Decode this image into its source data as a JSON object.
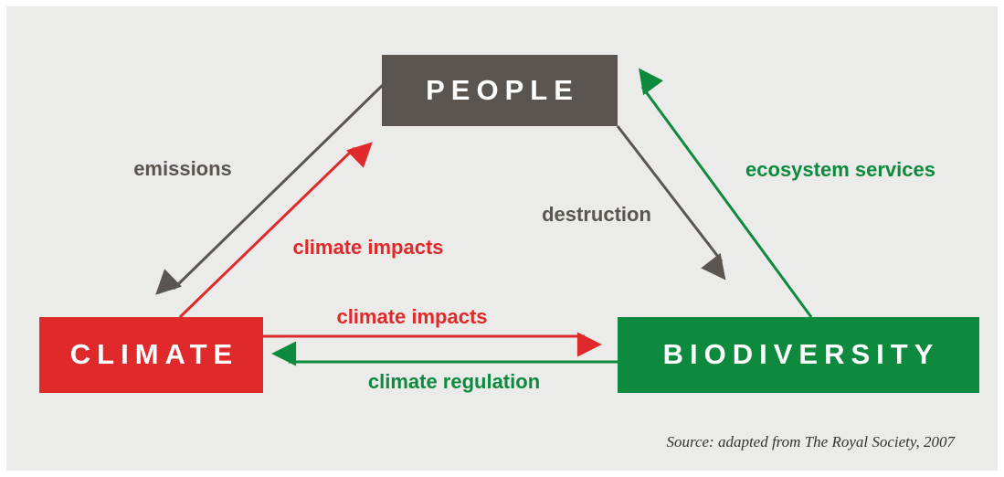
{
  "nodes": [
    {
      "label": "PEOPLE"
    },
    {
      "label": "CLIMATE"
    },
    {
      "label": "BIODIVERSITY"
    }
  ],
  "edges": [
    {
      "label": "emissions"
    },
    {
      "label": "climate impacts"
    },
    {
      "label": "destruction"
    },
    {
      "label": "ecosystem services"
    },
    {
      "label": "climate impacts"
    },
    {
      "label": "climate regulation"
    }
  ],
  "source": "Source: adapted from The Royal Society, 2007"
}
